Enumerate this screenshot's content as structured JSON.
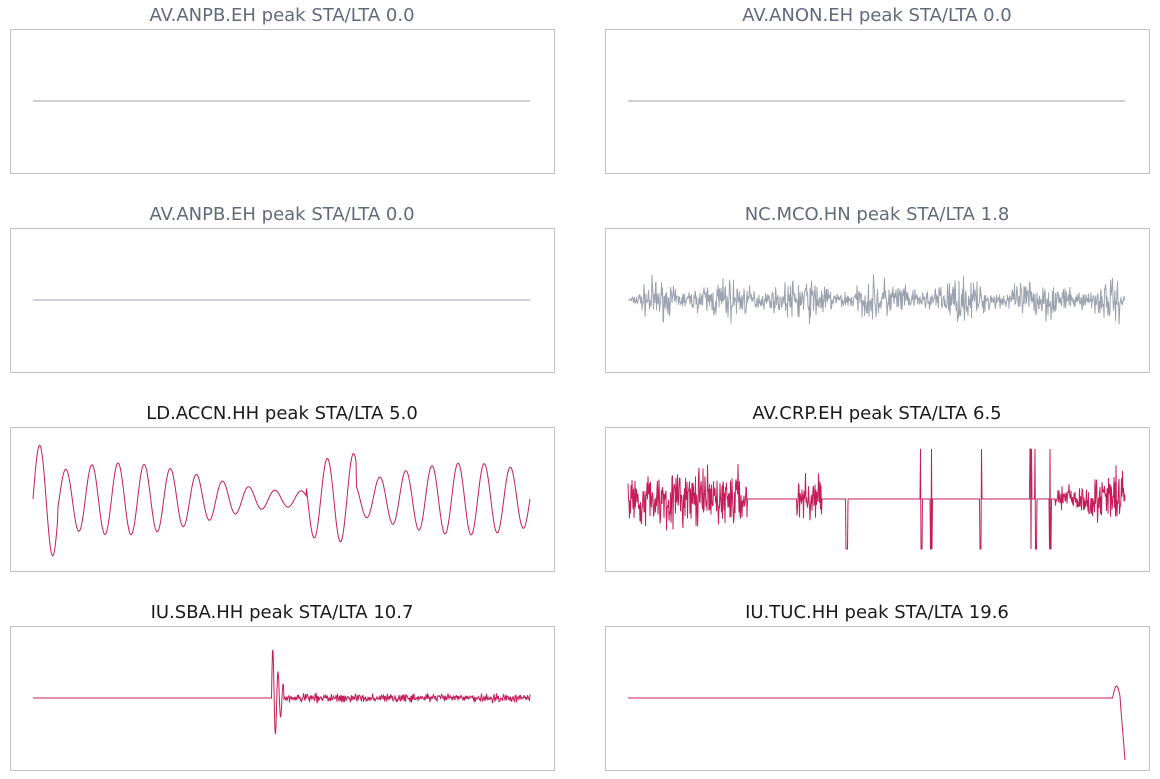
{
  "panels": [
    {
      "title": "AV.ANPB.EH   peak STA/LTA 0.0",
      "color": "#9ca3af",
      "title_color": "#5f6b7a"
    },
    {
      "title": "AV.ANON.EH   peak STA/LTA 0.0",
      "color": "#9ca3af",
      "title_color": "#5f6b7a"
    },
    {
      "title": "AV.ANPB.EH   peak STA/LTA 0.0",
      "color": "#9ca3af",
      "title_color": "#5f6b7a"
    },
    {
      "title": "NC.MCO.HN   peak STA/LTA 1.8",
      "color": "#9ca3af",
      "title_color": "#5f6b7a"
    },
    {
      "title": "LD.ACCN.HH   peak STA/LTA 5.0",
      "color": "#c41e5a",
      "title_color": "#1a1a1a"
    },
    {
      "title": "AV.CRP.EH   peak STA/LTA 6.5",
      "color": "#c41e5a",
      "title_color": "#1a1a1a"
    },
    {
      "title": "IU.SBA.HH   peak STA/LTA 10.7",
      "color": "#c41e5a",
      "title_color": "#1a1a1a"
    },
    {
      "title": "IU.TUC.HH   peak STA/LTA 19.6",
      "color": "#c41e5a",
      "title_color": "#1a1a1a"
    }
  ]
}
